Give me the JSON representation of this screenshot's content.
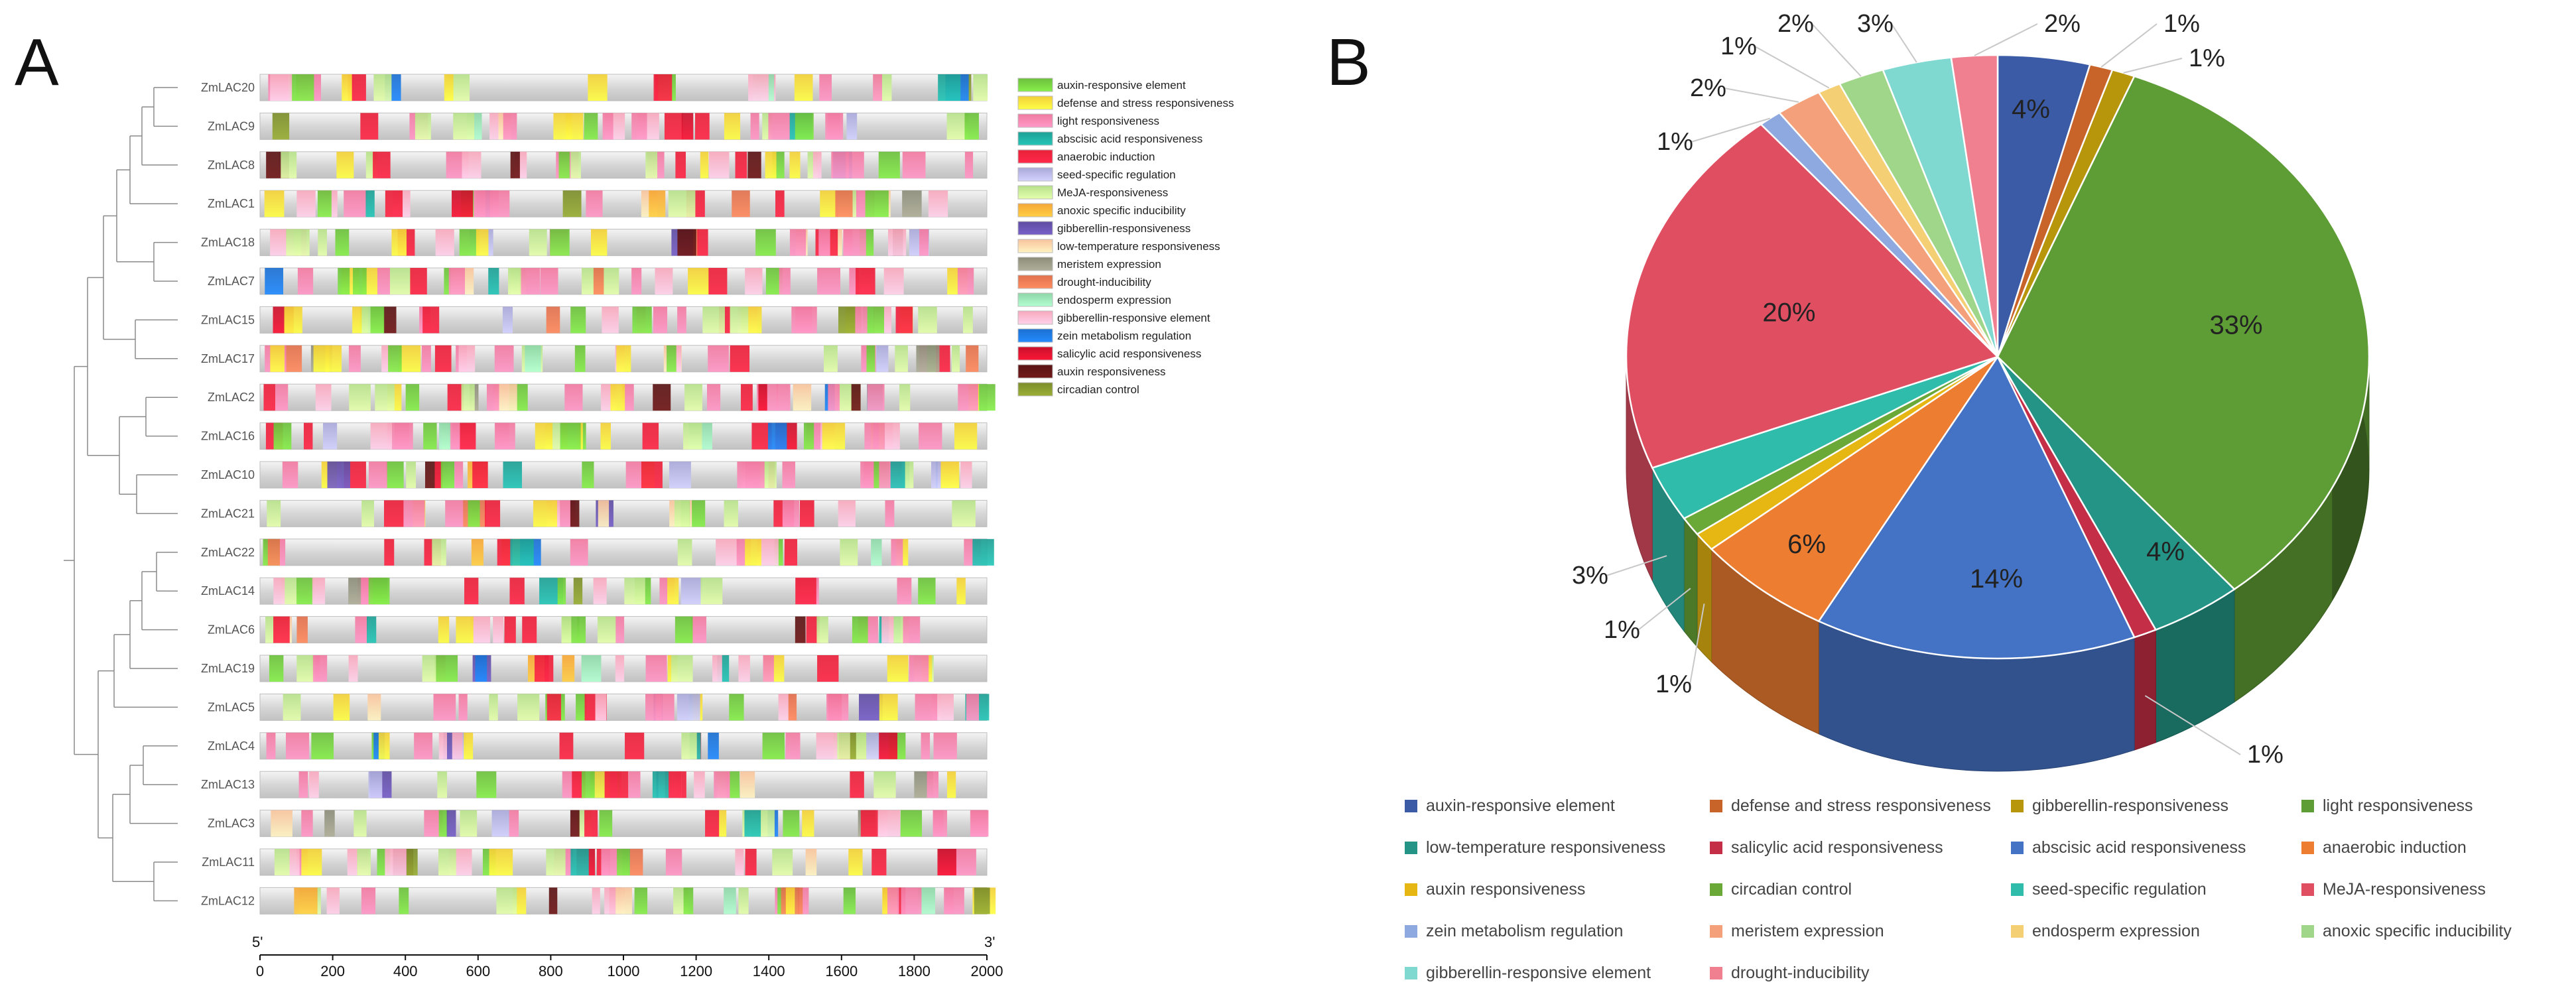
{
  "panels": {
    "a_label": "A",
    "b_label": "B"
  },
  "chart_data": [
    {
      "type": "promoter-element-map",
      "panel": "A",
      "axis": {
        "ticks": [
          "0",
          "200",
          "400",
          "600",
          "800",
          "1000",
          "1200",
          "1400",
          "1600",
          "1800",
          "2000"
        ],
        "xlim": [
          0,
          2000
        ],
        "five_prime": "5'",
        "three_prime": "3'"
      },
      "genes": [
        "ZmLAC20",
        "ZmLAC9",
        "ZmLAC8",
        "ZmLAC1",
        "ZmLAC18",
        "ZmLAC7",
        "ZmLAC15",
        "ZmLAC17",
        "ZmLAC2",
        "ZmLAC16",
        "ZmLAC10",
        "ZmLAC21",
        "ZmLAC22",
        "ZmLAC14",
        "ZmLAC6",
        "ZmLAC19",
        "ZmLAC5",
        "ZmLAC4",
        "ZmLAC13",
        "ZmLAC3",
        "ZmLAC11",
        "ZmLAC12"
      ],
      "legend": [
        {
          "label": "auxin-responsive element",
          "color": "#6cbf3c"
        },
        {
          "label": "defense and stress responsiveness",
          "color": "#f2cf38"
        },
        {
          "label": "light responsiveness",
          "color": "#f07aa0"
        },
        {
          "label": "abscisic acid responsiveness",
          "color": "#1e9f94"
        },
        {
          "label": "anaerobic induction",
          "color": "#e8213a"
        },
        {
          "label": "seed-specific regulation",
          "color": "#a9a8d8"
        },
        {
          "label": "MeJA-responsiveness",
          "color": "#b7e08a"
        },
        {
          "label": "anoxic specific inducibility",
          "color": "#f6a637"
        },
        {
          "label": "gibberellin-responsiveness",
          "color": "#5f4da1"
        },
        {
          "label": "low-temperature responsiveness",
          "color": "#f7c39c"
        },
        {
          "label": "meristem expression",
          "color": "#8c8c7a"
        },
        {
          "label": "drought-inducibility",
          "color": "#e0704d"
        },
        {
          "label": "endosperm expression",
          "color": "#8fd6a8"
        },
        {
          "label": "gibberellin-responsive element",
          "color": "#f7a8bc"
        },
        {
          "label": "zein metabolism regulation",
          "color": "#1c6fd0"
        },
        {
          "label": "salicylic acid responsiveness",
          "color": "#c9112b"
        },
        {
          "label": "auxin responsiveness",
          "color": "#5a1414"
        },
        {
          "label": "circadian control",
          "color": "#7b8c2b"
        }
      ]
    },
    {
      "type": "pie",
      "panel": "B",
      "slices": [
        {
          "label": "auxin-responsive element",
          "value": 4,
          "text": "4%",
          "color": "#3b5ba7"
        },
        {
          "label": "defense and stress responsiveness",
          "value": 1,
          "text": "1%",
          "color": "#c8642a"
        },
        {
          "label": "gibberellin-responsiveness",
          "value": 1,
          "text": "1%",
          "color": "#b8960c"
        },
        {
          "label": "light responsiveness",
          "value": 33,
          "text": "33%",
          "color": "#5e9c35"
        },
        {
          "label": "low-temperature responsiveness",
          "value": 4,
          "text": "4%",
          "color": "#239485"
        },
        {
          "label": "salicylic acid responsiveness",
          "value": 1,
          "text": "1%",
          "color": "#c42e46"
        },
        {
          "label": "abscisic acid responsiveness",
          "value": 14,
          "text": "14%",
          "color": "#4472c4"
        },
        {
          "label": "anaerobic induction",
          "value": 6,
          "text": "6%",
          "color": "#ed7d31"
        },
        {
          "label": "auxin responsiveness",
          "value": 1,
          "text": "1%",
          "color": "#e6b612"
        },
        {
          "label": "circadian control",
          "value": 1,
          "text": "1%",
          "color": "#6aa838"
        },
        {
          "label": "seed-specific regulation",
          "value": 3,
          "text": "3%",
          "color": "#2fbcaa"
        },
        {
          "label": "MeJA-responsiveness",
          "value": 20,
          "text": "20%",
          "color": "#e04e62"
        },
        {
          "label": "zein metabolism regulation",
          "value": 1,
          "text": "1%",
          "color": "#8ea9e0"
        },
        {
          "label": "meristem expression",
          "value": 2,
          "text": "2%",
          "color": "#f4a07a"
        },
        {
          "label": "endosperm expression",
          "value": 1,
          "text": "1%",
          "color": "#f5cf74"
        },
        {
          "label": "anoxic specific inducibility",
          "value": 2,
          "text": "2%",
          "color": "#9fd68a"
        },
        {
          "label": "gibberellin-responsive element",
          "value": 3,
          "text": "3%",
          "color": "#7fd9d1"
        },
        {
          "label": "drought-inducibility",
          "value": 2,
          "text": "2%",
          "color": "#f08090"
        }
      ]
    }
  ]
}
